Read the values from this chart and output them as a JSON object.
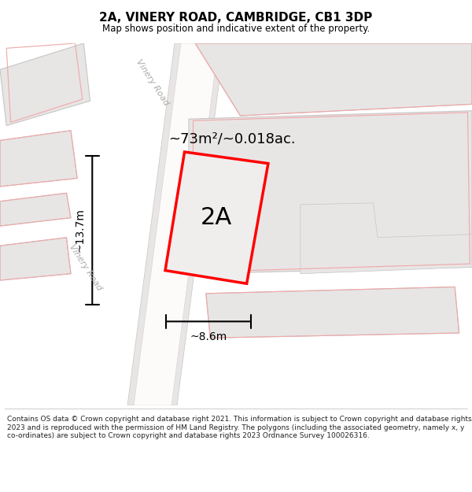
{
  "title": "2A, VINERY ROAD, CAMBRIDGE, CB1 3DP",
  "subtitle": "Map shows position and indicative extent of the property.",
  "footer": "Contains OS data © Crown copyright and database right 2021. This information is subject to Crown copyright and database rights 2023 and is reproduced with the permission of HM Land Registry. The polygons (including the associated geometry, namely x, y co-ordinates) are subject to Crown copyright and database rights 2023 Ordnance Survey 100026316.",
  "map_bg": "#eeecec",
  "building_fill": "#e8e5e5",
  "building_edge": "#c8c5c5",
  "road_fill": "#faf8f8",
  "road_edge": "#d0cccc",
  "light_red": "#f0a8a8",
  "prop_fill": "#f0eded",
  "prop_edge": "#ff0000",
  "area_text": "~73m²/~0.018ac.",
  "label_text": "2A",
  "dim_width": "~8.6m",
  "dim_height": "~13.7m",
  "road_label": "Vinery Road",
  "road_label2": "Vinery Road"
}
